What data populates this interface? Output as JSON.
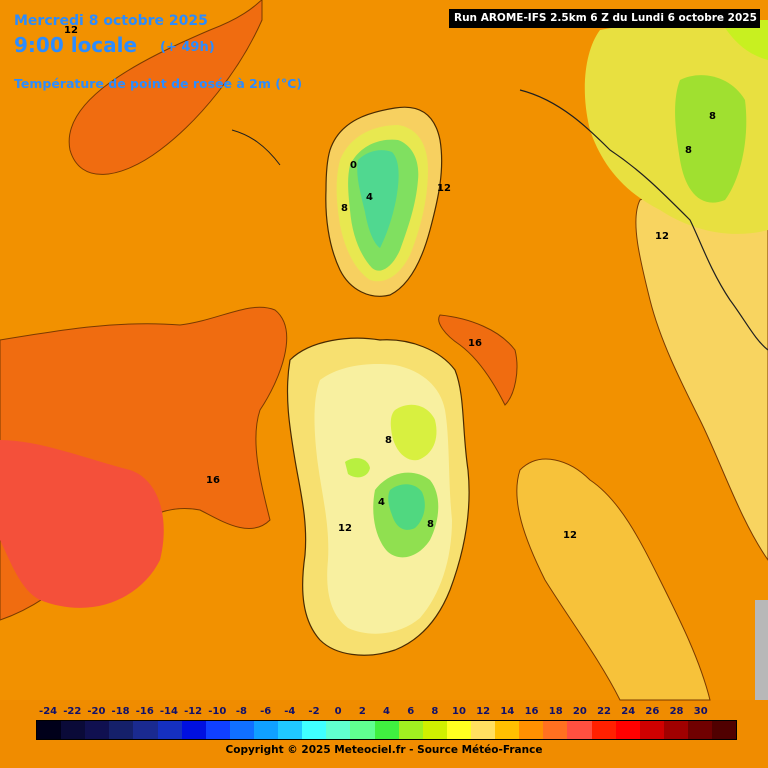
{
  "header": {
    "date": "Mercredi 8 octobre 2025",
    "local_time": "9:00 locale",
    "lead": "(+ 49h)",
    "parameter": "Température de point de rosée à 2m (°C)",
    "run": "Run AROME-IFS 2.5km 6 Z du Lundi 6 octobre 2025"
  },
  "map": {
    "region": "Corsica and Sardinia",
    "contour_labels": [
      "0",
      "4",
      "8",
      "12",
      "12",
      "16",
      "8",
      "4",
      "8",
      "12",
      "16",
      "12",
      "8",
      "8",
      "12"
    ]
  },
  "legend": {
    "ticks": [
      "-24",
      "-22",
      "-20",
      "-18",
      "-16",
      "-14",
      "-12",
      "-10",
      "-8",
      "-6",
      "-4",
      "-2",
      "0",
      "2",
      "4",
      "6",
      "8",
      "10",
      "12",
      "14",
      "16",
      "18",
      "20",
      "22",
      "24",
      "26",
      "28",
      "30"
    ],
    "colors": [
      "#00001a",
      "#0a0a38",
      "#101050",
      "#15206a",
      "#1a2a90",
      "#1530c0",
      "#0010e0",
      "#1040ff",
      "#1070ff",
      "#10a0ff",
      "#20c8ff",
      "#40ffff",
      "#60ffd0",
      "#60ff90",
      "#40f040",
      "#a0f020",
      "#d0f000",
      "#ffff20",
      "#ffe060",
      "#ffc000",
      "#ff9000",
      "#ff7020",
      "#ff5040",
      "#ff2000",
      "#ff0000",
      "#d00000",
      "#a00000",
      "#700000",
      "#500000"
    ],
    "copyright": "Copyright © 2025 Meteociel.fr - Source Météo-France"
  },
  "colors": {
    "header_text": "#2b8cff",
    "background_orange": "#f08c00"
  }
}
